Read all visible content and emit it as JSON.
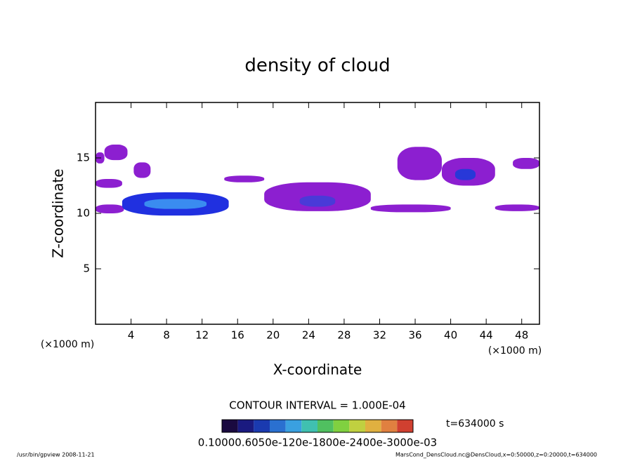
{
  "chart_data": {
    "type": "contour",
    "title": "density of cloud",
    "xlabel": "X-coordinate",
    "ylabel": "Z-coordinate",
    "xlabel_unit": "(×1000 m)",
    "ylabel_unit": "(×1000 m)",
    "xlim": [
      0,
      50
    ],
    "ylim": [
      0,
      20
    ],
    "xticks": [
      4,
      8,
      12,
      16,
      20,
      24,
      28,
      32,
      36,
      40,
      44,
      48
    ],
    "yticks": [
      5,
      10,
      15
    ],
    "regions": [
      {
        "x": [
          0,
          1
        ],
        "z": [
          14.5,
          15.5
        ],
        "peak": 0.0001,
        "color": "#8c1fd0"
      },
      {
        "x": [
          1,
          3.6
        ],
        "z": [
          14.8,
          16.2
        ],
        "peak": 0.0001,
        "color": "#8c1fd0"
      },
      {
        "x": [
          0,
          3
        ],
        "z": [
          12.3,
          13.1
        ],
        "peak": 0.0001,
        "color": "#8c1fd0"
      },
      {
        "x": [
          4.3,
          6.2
        ],
        "z": [
          13.2,
          14.6
        ],
        "peak": 0.0001,
        "color": "#8c1fd0"
      },
      {
        "x": [
          0,
          3.2
        ],
        "z": [
          10,
          10.8
        ],
        "peak": 0.0001,
        "color": "#8c1fd0"
      },
      {
        "x": [
          3,
          15
        ],
        "z": [
          9.8,
          11.9
        ],
        "peak": 0.0002,
        "color": "#2030e0"
      },
      {
        "x": [
          5.5,
          12.5
        ],
        "z": [
          10.4,
          11.3
        ],
        "peak": 0.0003,
        "color": "#3a8cf0"
      },
      {
        "x": [
          14.5,
          19
        ],
        "z": [
          12.8,
          13.4
        ],
        "peak": 0.0001,
        "color": "#8c1fd0"
      },
      {
        "x": [
          19,
          31
        ],
        "z": [
          10.2,
          12.8
        ],
        "peak": 0.0001,
        "color": "#8c1fd0"
      },
      {
        "x": [
          23,
          27
        ],
        "z": [
          10.6,
          11.6
        ],
        "peak": 0.0002,
        "color": "#4a3ad8"
      },
      {
        "x": [
          31,
          40
        ],
        "z": [
          10.1,
          10.8
        ],
        "peak": 0.0001,
        "color": "#8c1fd0"
      },
      {
        "x": [
          34,
          39
        ],
        "z": [
          13,
          16
        ],
        "peak": 0.0001,
        "color": "#8c1fd0"
      },
      {
        "x": [
          39,
          45
        ],
        "z": [
          12.5,
          15
        ],
        "peak": 0.0001,
        "color": "#8c1fd0"
      },
      {
        "x": [
          40.5,
          42.8
        ],
        "z": [
          13,
          14
        ],
        "peak": 0.0002,
        "color": "#2838d8"
      },
      {
        "x": [
          45,
          50
        ],
        "z": [
          10.2,
          10.8
        ],
        "peak": 0.0001,
        "color": "#8c1fd0"
      },
      {
        "x": [
          47,
          50
        ],
        "z": [
          14,
          15
        ],
        "peak": 0.0001,
        "color": "#8c1fd0"
      }
    ],
    "contour_interval": "CONTOUR INTERVAL = 1.000E-04",
    "time_label": "t=634000 s",
    "colorbar": {
      "colors": [
        "#1a0a40",
        "#1a1a80",
        "#1a3ab0",
        "#2a70d0",
        "#3aa0e0",
        "#40c0b0",
        "#50c060",
        "#80d040",
        "#c0d040",
        "#e0b040",
        "#e08040",
        "#d04030"
      ],
      "label": "0.10000.6050e-120e-1800e-2400e-3000e-03"
    },
    "footer_left": "/usr/bin/gpview   2008-11-21",
    "footer_right": "MarsCond_DensCloud.nc@DensCloud,x=0:50000,z=0:20000,t=634000"
  }
}
